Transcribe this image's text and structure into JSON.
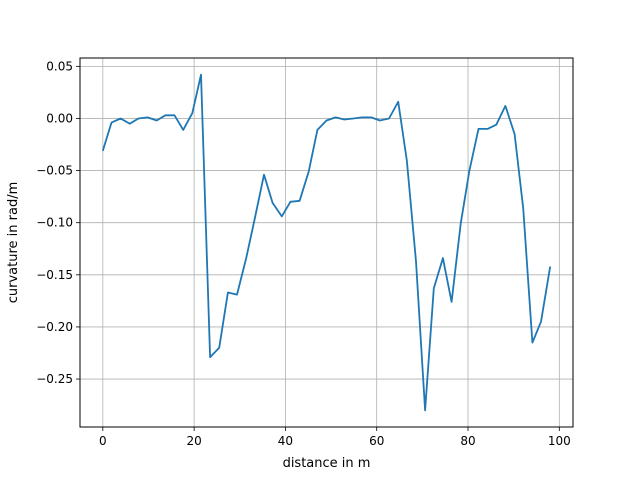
{
  "chart_data": {
    "type": "line",
    "title": "",
    "xlabel": "distance in m",
    "ylabel": "curvature in rad/m",
    "xlim": [
      -5,
      103
    ],
    "ylim": [
      -0.296,
      0.058
    ],
    "x_ticks": [
      0,
      20,
      40,
      60,
      80,
      100
    ],
    "y_ticks": [
      0.05,
      0.0,
      -0.05,
      -0.1,
      -0.15,
      -0.2,
      -0.25
    ],
    "x_tick_labels": [
      "0",
      "20",
      "40",
      "60",
      "80",
      "100"
    ],
    "y_tick_labels": [
      "0.05",
      "0.00",
      "−0.05",
      "−0.10",
      "−0.15",
      "−0.20",
      "−0.25"
    ],
    "grid": true,
    "legend": "none",
    "series": [
      {
        "color": "#1f77b4",
        "x": [
          0.0,
          1.9,
          3.9,
          5.9,
          7.8,
          9.8,
          11.8,
          13.7,
          15.7,
          17.6,
          19.6,
          21.5,
          23.5,
          25.5,
          27.4,
          29.4,
          31.4,
          33.3,
          35.3,
          37.2,
          39.2,
          41.1,
          43.1,
          45.1,
          47.0,
          49.0,
          51.0,
          52.9,
          54.9,
          56.8,
          58.8,
          60.7,
          62.7,
          64.7,
          66.6,
          68.6,
          70.6,
          72.5,
          74.5,
          76.4,
          78.4,
          80.3,
          82.3,
          84.3,
          86.2,
          88.2,
          90.2,
          92.1,
          94.1,
          96.0,
          98.0
        ],
        "y": [
          -0.031,
          -0.004,
          0.0,
          -0.005,
          0.0,
          0.001,
          -0.002,
          0.003,
          0.003,
          -0.011,
          0.005,
          0.042,
          -0.229,
          -0.22,
          -0.167,
          -0.169,
          -0.134,
          -0.096,
          -0.054,
          -0.081,
          -0.094,
          -0.08,
          -0.079,
          -0.051,
          -0.011,
          -0.002,
          0.001,
          -0.001,
          0.0,
          0.001,
          0.001,
          -0.002,
          0.0,
          0.016,
          -0.04,
          -0.137,
          -0.28,
          -0.163,
          -0.134,
          -0.176,
          -0.101,
          -0.05,
          -0.01,
          -0.01,
          -0.006,
          0.012,
          -0.015,
          -0.086,
          -0.215,
          -0.195,
          -0.142
        ]
      }
    ]
  }
}
